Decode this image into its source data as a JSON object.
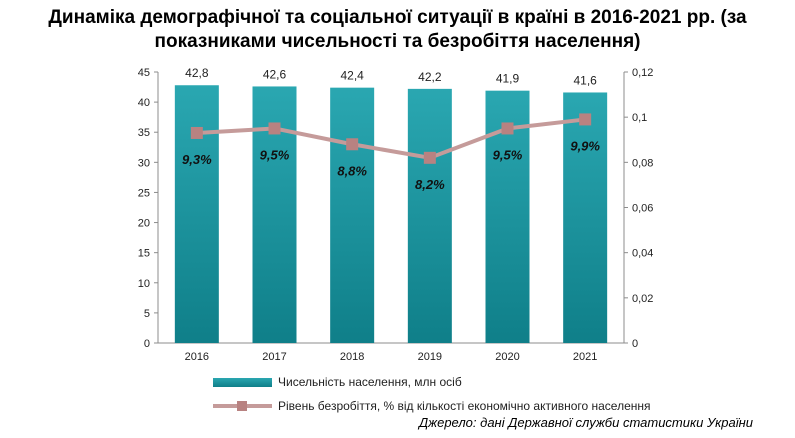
{
  "title": {
    "line1": "Динаміка демографічної та соціальної ситуації в країні в 2016-2021 рр. (за",
    "line2": "показниками чисельності та безробіття населення)"
  },
  "chart_data": {
    "type": "bar",
    "categories": [
      "2016",
      "2017",
      "2018",
      "2019",
      "2020",
      "2021"
    ],
    "series": [
      {
        "name": "Чисельність населення, млн осіб",
        "type": "bar",
        "axis": "left",
        "values": [
          42.8,
          42.6,
          42.4,
          42.2,
          41.9,
          41.6
        ],
        "labels": [
          "42,8",
          "42,6",
          "42,4",
          "42,2",
          "41,9",
          "41,6"
        ],
        "color": "#1796a0"
      },
      {
        "name": "Рівень безробіття, % від кількості економічно активного населення",
        "type": "line",
        "axis": "right",
        "values": [
          0.093,
          0.095,
          0.088,
          0.082,
          0.095,
          0.099
        ],
        "labels": [
          "9,3%",
          "9,5%",
          "8,8%",
          "8,2%",
          "9,5%",
          "9,9%"
        ],
        "color": "#c59b9a"
      }
    ],
    "y_left": {
      "min": 0,
      "max": 45,
      "ticks": [
        "0",
        "5",
        "10",
        "15",
        "20",
        "25",
        "30",
        "35",
        "40",
        "45"
      ]
    },
    "y_right": {
      "min": 0,
      "max": 0.12,
      "ticks": [
        "0",
        "0,02",
        "0,04",
        "0,06",
        "0,08",
        "0,1",
        "0,12"
      ]
    },
    "grid": false,
    "legend_position": "bottom"
  },
  "legend": {
    "bar_label": "Чисельність населення, млн осіб",
    "line_label": "Рівень безробіття, % від кількості економічно активного населення"
  },
  "source": "Джерело: дані Державної служби статистики України"
}
